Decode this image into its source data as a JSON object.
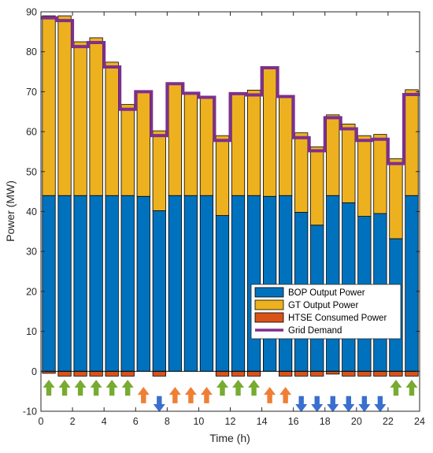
{
  "chart_data": {
    "type": "bar",
    "stacked": true,
    "xlabel": "Time (h)",
    "ylabel": "Power (MW)",
    "xlim": [
      0,
      24
    ],
    "ylim": [
      -10,
      90
    ],
    "xticks": [
      "0",
      "2",
      "4",
      "6",
      "8",
      "10",
      "12",
      "14",
      "16",
      "18",
      "20",
      "22",
      "24"
    ],
    "yticks": [
      "-10",
      "0",
      "10",
      "20",
      "30",
      "40",
      "50",
      "60",
      "70",
      "80",
      "90"
    ],
    "x": [
      0.5,
      1.5,
      2.5,
      3.5,
      4.5,
      5.5,
      6.5,
      7.5,
      8.5,
      9.5,
      10.5,
      11.5,
      12.5,
      13.5,
      14.5,
      15.5,
      16.5,
      17.5,
      18.5,
      19.5,
      20.5,
      21.5,
      22.5,
      23.5
    ],
    "series": [
      {
        "name": "BOP Output Power",
        "color": "#0072BD",
        "values": [
          44,
          44,
          44,
          44,
          44,
          44,
          43.8,
          40.2,
          44,
          44,
          44,
          39,
          44,
          44,
          43.8,
          44,
          39.8,
          36.6,
          44,
          42.2,
          38.8,
          39.5,
          33.2,
          44
        ]
      },
      {
        "name": "GT Output Power",
        "color": "#EDB120",
        "values": [
          45,
          45,
          38.5,
          39.5,
          33.4,
          22.8,
          26.2,
          20,
          28,
          25.8,
          24.8,
          20,
          25.7,
          26.4,
          32.2,
          25,
          19.9,
          19.6,
          20.2,
          19.7,
          20.2,
          19.8,
          20,
          26.5
        ]
      },
      {
        "name": "HTSE Consumed Power",
        "color": "#D95319",
        "values": [
          -0.5,
          -1.2,
          -1.2,
          -1.2,
          -1.2,
          -1.2,
          0,
          -1.2,
          0,
          0,
          0,
          -1.2,
          -1.2,
          -1.2,
          0,
          -1.2,
          -1.2,
          -1.2,
          -0.7,
          -1.2,
          -1.2,
          -1.2,
          -1.2,
          -1.2
        ]
      },
      {
        "name": "Grid Demand",
        "color": "#7E2F8E",
        "type": "step",
        "values": [
          88.5,
          87.8,
          81.3,
          82.3,
          76.2,
          65.6,
          70,
          59,
          72,
          69.6,
          68.6,
          57.8,
          69.5,
          69.2,
          76,
          68.8,
          58.5,
          55.2,
          63.5,
          60.7,
          57.8,
          58.1,
          52,
          69.3
        ]
      }
    ],
    "arrows": {
      "colors": {
        "up-green": "#77AC30",
        "up-orange": "#EF7F35",
        "down-blue": "#3A6FCF"
      },
      "kinds": [
        "up-green",
        "up-green",
        "up-green",
        "up-green",
        "up-green",
        "up-green",
        "up-orange",
        "down-blue",
        "up-orange",
        "up-orange",
        "up-orange",
        "up-green",
        "up-green",
        "up-green",
        "up-orange",
        "up-orange",
        "down-blue",
        "down-blue",
        "down-blue",
        "down-blue",
        "down-blue",
        "down-blue",
        "up-green",
        "up-green"
      ]
    },
    "legend": {
      "placement": "lower-right-inside",
      "entries": [
        "BOP Output Power",
        "GT Output Power",
        "HTSE Consumed Power",
        "Grid Demand"
      ]
    },
    "grid": false
  }
}
